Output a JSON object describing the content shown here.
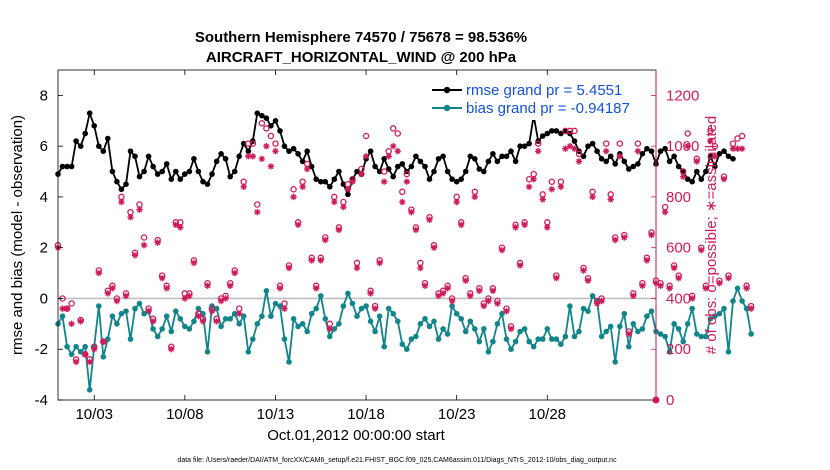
{
  "chart_data": {
    "type": "line",
    "title_line1": "Southern Hemisphere 74570 / 75678 = 98.536%",
    "title_line2": "AIRCRAFT_HORIZONTAL_WIND @ 200 hPa",
    "xlabel": "Oct.01,2012 00:00:00 start",
    "ylabel_left": "rmse and bias (model - observation)",
    "ylabel_right": "# of obs: o=possible; ∗=assimilated",
    "footer": "data file: /Users/raeder/DAI/ATM_forcXX/CAM6_setup/f.e21.FHIST_BGC.f09_025.CAM6assim.011/Diags_NTrS_2012-10/obs_diag_output.nc",
    "x_range_days": [
      1,
      34
    ],
    "x_ticks": [
      {
        "value": 3,
        "label": "10/03"
      },
      {
        "value": 8,
        "label": "10/08"
      },
      {
        "value": 13,
        "label": "10/13"
      },
      {
        "value": 18,
        "label": "10/18"
      },
      {
        "value": 23,
        "label": "10/23"
      },
      {
        "value": 28,
        "label": "10/28"
      }
    ],
    "y_left_range": [
      -4,
      9
    ],
    "y_left_ticks": [
      -4,
      -2,
      0,
      2,
      4,
      6,
      8
    ],
    "y_right_range": [
      0,
      1300
    ],
    "y_right_ticks": [
      0,
      200,
      400,
      600,
      800,
      1000,
      1200
    ],
    "zero_line": 0,
    "series": [
      {
        "name": "rmse grand pr = 5.4551",
        "axis": "left",
        "color": "#000000",
        "step_days": 0.25,
        "values": [
          4.9,
          5.2,
          5.2,
          5.2,
          6.2,
          6.0,
          6.5,
          7.3,
          6.8,
          6.0,
          5.8,
          6.3,
          5.0,
          4.6,
          4.3,
          4.5,
          5.8,
          5.6,
          4.8,
          5.0,
          5.6,
          5.2,
          4.9,
          5.0,
          5.3,
          4.7,
          5.0,
          4.7,
          4.9,
          5.0,
          5.5,
          5.0,
          4.6,
          4.5,
          4.9,
          5.4,
          5.7,
          5.5,
          4.8,
          5.0,
          5.6,
          6.1,
          5.8,
          6.2,
          7.3,
          7.2,
          7.1,
          6.8,
          7.0,
          6.6,
          6.0,
          5.8,
          5.9,
          5.7,
          5.4,
          5.8,
          5.2,
          4.7,
          4.6,
          4.6,
          4.4,
          4.7,
          5.0,
          4.5,
          4.1,
          4.7,
          5.0,
          4.9,
          5.5,
          5.8,
          5.2,
          5.0,
          5.5,
          5.1,
          4.8,
          5.2,
          5.3,
          5.0,
          5.2,
          5.6,
          5.4,
          5.2,
          4.7,
          5.0,
          5.5,
          5.6,
          5.0,
          4.7,
          4.6,
          4.7,
          5.0,
          5.6,
          5.5,
          5.1,
          5.0,
          5.4,
          5.7,
          5.4,
          5.6,
          5.6,
          5.8,
          5.4,
          6.0,
          6.0,
          6.1,
          7.2,
          6.2,
          6.4,
          6.5,
          6.6,
          6.6,
          6.5,
          6.6,
          6.5,
          6.2,
          5.8,
          5.6,
          6.0,
          6.1,
          5.8,
          5.5,
          5.4,
          5.6,
          5.3,
          5.7,
          5.4,
          5.1,
          5.2,
          5.3,
          5.7,
          5.9,
          5.8,
          5.3,
          5.8,
          5.9,
          5.4,
          5.6,
          5.2,
          5.0,
          4.7,
          4.6,
          5.0,
          4.7,
          5.0,
          5.6,
          5.2,
          5.7,
          5.8,
          5.6,
          5.5
        ]
      },
      {
        "name": "bias grand pr = -0.94187",
        "axis": "left",
        "color": "#11868a",
        "step_days": 0.25,
        "values": [
          -1.0,
          -0.7,
          -1.9,
          -2.2,
          -1.9,
          -2.1,
          -1.9,
          -3.6,
          -1.9,
          -0.3,
          -2.3,
          -1.6,
          -0.7,
          -1.0,
          -0.6,
          -0.5,
          -1.6,
          -0.4,
          -0.2,
          -0.6,
          -0.5,
          -1.2,
          -1.5,
          -1.2,
          -0.7,
          -1.3,
          -0.5,
          -0.8,
          -1.1,
          -1.2,
          -0.9,
          -0.4,
          -0.6,
          -2.1,
          -0.3,
          -0.4,
          -1.1,
          -0.8,
          -0.8,
          -0.6,
          -1.0,
          -0.7,
          -2.1,
          -1.6,
          -1.0,
          -0.7,
          0.3,
          -0.7,
          -0.2,
          -0.3,
          -1.6,
          -2.5,
          -0.8,
          -1.1,
          -1.0,
          -1.3,
          -0.6,
          -0.4,
          0.1,
          -0.8,
          -1.5,
          -1.2,
          -1.0,
          -0.3,
          0.2,
          -0.2,
          -0.7,
          -0.4,
          -0.3,
          -0.9,
          -1.3,
          -0.7,
          -1.9,
          -0.4,
          -0.6,
          -0.9,
          -1.8,
          -2.0,
          -1.6,
          -1.5,
          -1.0,
          -0.8,
          -1.1,
          -0.9,
          -1.6,
          -1.2,
          -1.4,
          -0.3,
          -0.6,
          -0.8,
          -1.3,
          -0.9,
          -1.2,
          -1.7,
          -1.2,
          -2.1,
          -1.7,
          -1.0,
          -0.6,
          -1.6,
          -2.0,
          -1.7,
          -1.3,
          -1.2,
          -1.7,
          -1.9,
          -1.6,
          -1.6,
          -1.2,
          -1.6,
          -1.6,
          -1.8,
          -1.5,
          -0.3,
          -1.5,
          -1.3,
          -0.4,
          -0.5,
          0.1,
          -0.1,
          -1.5,
          -1.3,
          -1.1,
          -2.5,
          -1.1,
          -0.6,
          -1.9,
          -1.0,
          -1.3,
          -1.2,
          -0.7,
          -0.5,
          -1.3,
          -1.4,
          -1.5,
          -2.1,
          -1.0,
          -1.2,
          -1.7,
          -1.0,
          -0.4,
          -1.4,
          -1.5,
          -1.5,
          -0.8,
          -0.7,
          -0.6,
          -0.4,
          -2.1,
          -0.1,
          0.4,
          -0.1,
          -0.4,
          -1.4
        ]
      },
      {
        "name": "possible",
        "axis": "right",
        "color": "#d01b5a",
        "marker": "circle",
        "step_days": 0.25,
        "values": [
          610,
          400,
          360,
          380,
          160,
          315,
          180,
          160,
          210,
          510,
          230,
          430,
          450,
          400,
          800,
          420,
          740,
          580,
          770,
          640,
          360,
          320,
          630,
          490,
          450,
          210,
          700,
          700,
          420,
          420,
          550,
          340,
          320,
          460,
          360,
          320,
          400,
          410,
          460,
          510,
          360,
          860,
          1010,
          1010,
          770,
          1090,
          1070,
          1040,
          1010,
          450,
          380,
          530,
          830,
          700,
          860,
          930,
          560,
          450,
          560,
          640,
          300,
          800,
          680,
          780,
          850,
          870,
          540,
          910,
          1040,
          430,
          370,
          550,
          900,
          980,
          1070,
          1050,
          820,
          890,
          750,
          680,
          540,
          460,
          720,
          610,
          420,
          430,
          450,
          400,
          800,
          700,
          480,
          420,
          820,
          440,
          380,
          400,
          440,
          390,
          600,
          360,
          290,
          690,
          540,
          700,
          870,
          890,
          1010,
          810,
          700,
          860,
          490,
          860,
          1060,
          1060,
          1060,
          970,
          520,
          480,
          820,
          390,
          400,
          1010,
          810,
          640,
          1010,
          650,
          270,
          420,
          1010,
          460,
          560,
          660,
          470,
          460,
          760,
          450,
          530,
          490,
          900,
          1050,
          410,
          950,
          600,
          450,
          1060,
          1000,
          470,
          880,
          490,
          1010,
          1030,
          1040,
          450,
          370
        ]
      },
      {
        "name": "assimilated",
        "axis": "right",
        "color": "#d01b5a",
        "marker": "asterisk",
        "step_days": 0.25,
        "values": [
          600,
          360,
          360,
          300,
          150,
          310,
          180,
          150,
          200,
          500,
          230,
          420,
          440,
          390,
          780,
          410,
          720,
          570,
          750,
          610,
          350,
          310,
          620,
          480,
          440,
          200,
          690,
          680,
          400,
          410,
          540,
          330,
          310,
          450,
          350,
          310,
          390,
          400,
          450,
          500,
          340,
          840,
          960,
          960,
          740,
          950,
          1000,
          920,
          980,
          440,
          360,
          520,
          800,
          690,
          840,
          910,
          550,
          440,
          550,
          630,
          280,
          780,
          670,
          760,
          830,
          860,
          520,
          890,
          960,
          420,
          360,
          540,
          860,
          960,
          1000,
          980,
          780,
          860,
          740,
          670,
          520,
          450,
          710,
          600,
          410,
          420,
          440,
          390,
          780,
          690,
          470,
          410,
          800,
          430,
          370,
          390,
          430,
          380,
          590,
          350,
          280,
          680,
          530,
          690,
          840,
          870,
          980,
          790,
          680,
          830,
          480,
          840,
          990,
          1000,
          990,
          940,
          510,
          470,
          800,
          380,
          390,
          980,
          790,
          630,
          960,
          640,
          260,
          410,
          980,
          450,
          550,
          650,
          460,
          450,
          740,
          440,
          520,
          480,
          880,
          1000,
          400,
          940,
          590,
          440,
          1020,
          960,
          460,
          870,
          480,
          990,
          990,
          990,
          440,
          360
        ]
      }
    ],
    "end_marker": {
      "x_day": 34,
      "value_right": 0,
      "label": "0"
    }
  }
}
